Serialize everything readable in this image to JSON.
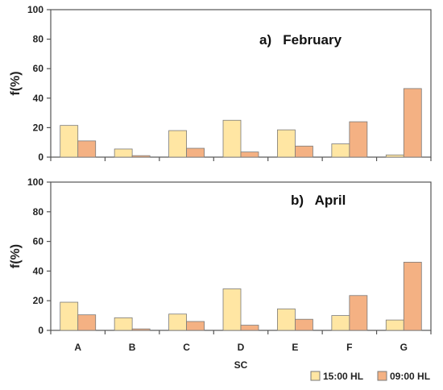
{
  "colors": {
    "series1": "#FFE6A3",
    "series2": "#F4B183",
    "bar_stroke": "#7a7a7a",
    "axis": "#555555"
  },
  "chart_data": {
    "type": "bar",
    "categories": [
      "A",
      "B",
      "C",
      "D",
      "E",
      "F",
      "G"
    ],
    "xlabel": "SC",
    "ylabel": "f(%)",
    "ylim": [
      0,
      100
    ],
    "yticks": [
      0,
      20,
      40,
      60,
      80,
      100
    ],
    "grid": false,
    "legend_position": "bottom-right",
    "legend": [
      "15:00 HL",
      "09:00 HL"
    ],
    "panels": [
      {
        "title": "a)   February",
        "series": [
          {
            "name": "15:00 HL",
            "values": [
              21.5,
              5.5,
              18,
              25,
              18.5,
              9,
              1.5
            ]
          },
          {
            "name": "09:00 HL",
            "values": [
              11,
              1,
              6,
              3.5,
              7.5,
              24,
              46.5
            ]
          }
        ]
      },
      {
        "title": "b)   April",
        "series": [
          {
            "name": "15:00 HL",
            "values": [
              19,
              8.5,
              11,
              28,
              14.5,
              10,
              7
            ]
          },
          {
            "name": "09:00 HL",
            "values": [
              10.5,
              1,
              6,
              3.5,
              7.5,
              23.5,
              46
            ]
          }
        ]
      }
    ]
  }
}
